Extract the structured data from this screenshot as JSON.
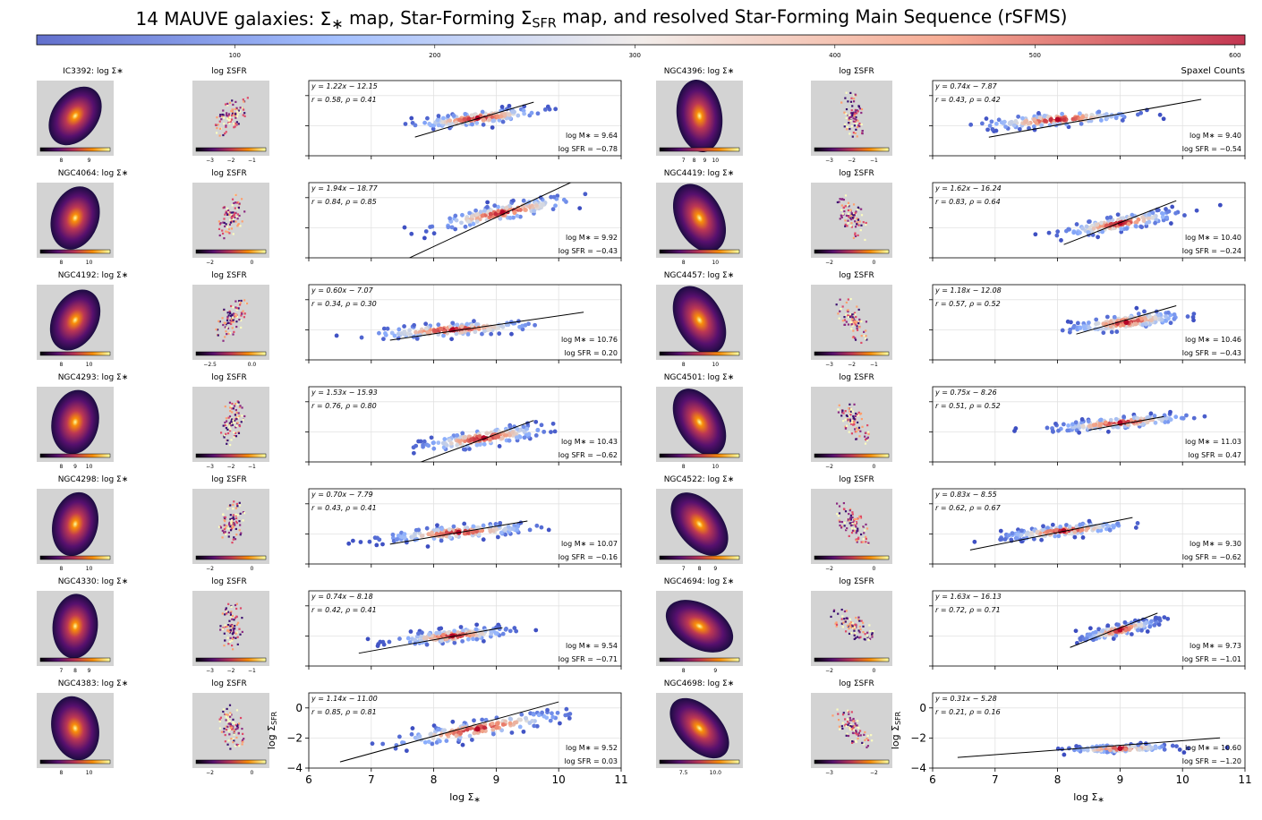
{
  "title": "14 MAUVE galaxies: Σ∗ map, Star-Forming ΣSFR map, and resolved Star-Forming Main Sequence (rSFMS)",
  "colorbar": {
    "label": "Spaxel Counts",
    "ticks": [
      100,
      200,
      300,
      400,
      500,
      600
    ],
    "range": [
      1,
      605
    ],
    "colormap": "coolwarm",
    "colors": [
      "#3b4cc0",
      "#b4c9f0",
      "#f2ece8",
      "#f2a98d",
      "#b40426"
    ]
  },
  "map_colors": {
    "background": "#d3d3d3",
    "colormap": "inferno"
  },
  "labels": {
    "xlabel": "log Σ∗",
    "ylabel": "log ΣSFR",
    "sfr_map_title": "log ΣSFR",
    "mstar_suffix": ": log Σ∗"
  },
  "axes": {
    "xlim": [
      6,
      11
    ],
    "ylim": [
      -4,
      1
    ],
    "xticks": [
      6,
      7,
      8,
      9,
      10,
      11
    ],
    "yticks": [
      0,
      -2,
      -4
    ]
  },
  "chart_data": {
    "type": "scatter",
    "title": "14 MAUVE galaxies: Σ∗ map, Star-Forming ΣSFR map, and resolved Star-Forming Main Sequence (rSFMS)",
    "xlabel": "log Σ∗",
    "ylabel": "log ΣSFR",
    "xlim": [
      6,
      11
    ],
    "ylim": [
      -4,
      1
    ],
    "grid": true,
    "panels": [
      {
        "galaxy": "IC3392",
        "slope": 1.22,
        "intercept": -12.15,
        "r": 0.58,
        "rho": 0.41,
        "logMstar": "9.64",
        "logSFR": "−0.78",
        "fit_range": [
          7.7,
          9.6
        ],
        "xc": 8.7,
        "yc": -1.5,
        "sx": 0.5,
        "sy": 0.35,
        "stretch": 0.45,
        "mstar_ticks": [
          "8",
          "9"
        ],
        "sfr_ticks": [
          "−3",
          "−2",
          "−1"
        ]
      },
      {
        "galaxy": "NGC4064",
        "slope": 1.94,
        "intercept": -18.77,
        "r": 0.84,
        "rho": 0.85,
        "logMstar": "9.92",
        "logSFR": "−0.43",
        "fit_range": [
          7.6,
          10.6
        ],
        "xc": 9.1,
        "yc": -1.0,
        "sx": 0.55,
        "sy": 0.45,
        "stretch": 0.8,
        "mstar_ticks": [
          "8",
          "10"
        ],
        "sfr_ticks": [
          "−2",
          "0"
        ]
      },
      {
        "galaxy": "NGC4192",
        "slope": 0.6,
        "intercept": -7.07,
        "r": 0.34,
        "rho": 0.3,
        "logMstar": "10.76",
        "logSFR": "0.20",
        "fit_range": [
          7.3,
          10.4
        ],
        "xc": 8.3,
        "yc": -2.0,
        "sx": 0.65,
        "sy": 0.35,
        "stretch": 0.25,
        "mstar_ticks": [
          "8",
          "10"
        ],
        "sfr_ticks": [
          "−2.5",
          "0.0"
        ]
      },
      {
        "galaxy": "NGC4293",
        "slope": 1.53,
        "intercept": -15.93,
        "r": 0.76,
        "rho": 0.8,
        "logMstar": "10.43",
        "logSFR": "−0.62",
        "fit_range": [
          7.7,
          9.6
        ],
        "xc": 8.8,
        "yc": -2.4,
        "sx": 0.5,
        "sy": 0.45,
        "stretch": 0.6,
        "mstar_ticks": [
          "8",
          "9",
          "10"
        ],
        "sfr_ticks": [
          "−3",
          "−2",
          "−1"
        ]
      },
      {
        "galaxy": "NGC4298",
        "slope": 0.7,
        "intercept": -7.79,
        "r": 0.43,
        "rho": 0.41,
        "logMstar": "10.07",
        "logSFR": "−0.16",
        "fit_range": [
          7.3,
          9.5
        ],
        "xc": 8.4,
        "yc": -1.9,
        "sx": 0.6,
        "sy": 0.35,
        "stretch": 0.3,
        "mstar_ticks": [
          "8",
          "10"
        ],
        "sfr_ticks": [
          "−2",
          "0"
        ]
      },
      {
        "galaxy": "NGC4330",
        "slope": 0.74,
        "intercept": -8.18,
        "r": 0.42,
        "rho": 0.41,
        "logMstar": "9.54",
        "logSFR": "−0.71",
        "fit_range": [
          6.8,
          9.1
        ],
        "xc": 8.3,
        "yc": -2.0,
        "sx": 0.45,
        "sy": 0.35,
        "stretch": 0.35,
        "mstar_ticks": [
          "7",
          "8",
          "9"
        ],
        "sfr_ticks": [
          "−3",
          "−2",
          "−1"
        ]
      },
      {
        "galaxy": "NGC4383",
        "slope": 1.14,
        "intercept": -11.0,
        "r": 0.85,
        "rho": 0.81,
        "logMstar": "9.52",
        "logSFR": "0.03",
        "fit_range": [
          6.5,
          10.0
        ],
        "xc": 8.7,
        "yc": -1.4,
        "sx": 0.7,
        "sy": 0.45,
        "stretch": 0.7,
        "mstar_ticks": [
          "8",
          "10"
        ],
        "sfr_ticks": [
          "−2",
          "0"
        ]
      },
      {
        "galaxy": "NGC4396",
        "slope": 0.74,
        "intercept": -7.87,
        "r": 0.43,
        "rho": 0.42,
        "logMstar": "9.40",
        "logSFR": "−0.54",
        "fit_range": [
          6.9,
          10.3
        ],
        "xc": 8.0,
        "yc": -1.6,
        "sx": 0.6,
        "sy": 0.35,
        "stretch": 0.3,
        "mstar_ticks": [
          "7",
          "8",
          "9",
          "10"
        ],
        "sfr_ticks": [
          "−3",
          "−2",
          "−1"
        ]
      },
      {
        "galaxy": "NGC4419",
        "slope": 1.62,
        "intercept": -16.24,
        "r": 0.83,
        "rho": 0.64,
        "logMstar": "10.40",
        "logSFR": "−0.24",
        "fit_range": [
          8.1,
          9.9
        ],
        "xc": 9.0,
        "yc": -1.7,
        "sx": 0.45,
        "sy": 0.4,
        "stretch": 0.7,
        "mstar_ticks": [
          "8",
          "10"
        ],
        "sfr_ticks": [
          "−2",
          "0"
        ]
      },
      {
        "galaxy": "NGC4457",
        "slope": 1.18,
        "intercept": -12.08,
        "r": 0.57,
        "rho": 0.52,
        "logMstar": "10.46",
        "logSFR": "−0.43",
        "fit_range": [
          8.3,
          9.9
        ],
        "xc": 9.1,
        "yc": -1.5,
        "sx": 0.45,
        "sy": 0.4,
        "stretch": 0.5,
        "mstar_ticks": [
          "8",
          "10"
        ],
        "sfr_ticks": [
          "−3",
          "−2",
          "−1"
        ]
      },
      {
        "galaxy": "NGC4501",
        "slope": 0.75,
        "intercept": -8.26,
        "r": 0.51,
        "rho": 0.52,
        "logMstar": "11.03",
        "logSFR": "0.47",
        "fit_range": [
          8.5,
          9.7
        ],
        "xc": 9.0,
        "yc": -1.4,
        "sx": 0.55,
        "sy": 0.3,
        "stretch": 0.35,
        "mstar_ticks": [
          "8",
          "10"
        ],
        "sfr_ticks": [
          "−2",
          "0"
        ]
      },
      {
        "galaxy": "NGC4522",
        "slope": 0.83,
        "intercept": -8.55,
        "r": 0.62,
        "rho": 0.67,
        "logMstar": "9.30",
        "logSFR": "−0.62",
        "fit_range": [
          6.6,
          9.2
        ],
        "xc": 8.1,
        "yc": -1.8,
        "sx": 0.5,
        "sy": 0.3,
        "stretch": 0.4,
        "mstar_ticks": [
          "7",
          "8",
          "9"
        ],
        "sfr_ticks": [
          "−2",
          "0"
        ]
      },
      {
        "galaxy": "NGC4694",
        "slope": 1.63,
        "intercept": -16.13,
        "r": 0.72,
        "rho": 0.71,
        "logMstar": "9.73",
        "logSFR": "−1.01",
        "fit_range": [
          8.2,
          9.6
        ],
        "xc": 9.0,
        "yc": -1.6,
        "sx": 0.3,
        "sy": 0.3,
        "stretch": 0.9,
        "mstar_ticks": [
          "8",
          "9"
        ],
        "sfr_ticks": [
          "−2",
          "0"
        ]
      },
      {
        "galaxy": "NGC4698",
        "slope": 0.31,
        "intercept": -5.28,
        "r": 0.21,
        "rho": 0.16,
        "logMstar": "10.60",
        "logSFR": "−1.20",
        "fit_range": [
          6.4,
          10.6
        ],
        "xc": 9.0,
        "yc": -2.7,
        "sx": 0.4,
        "sy": 0.2,
        "stretch": 0.1,
        "mstar_ticks": [
          "7.5",
          "10.0"
        ],
        "sfr_ticks": [
          "−3",
          "−2"
        ]
      }
    ]
  }
}
